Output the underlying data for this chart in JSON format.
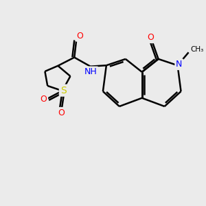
{
  "bg_color": "#ebebeb",
  "atom_color_N": "#0000ff",
  "atom_color_O": "#ff0000",
  "atom_color_S": "#cccc00",
  "bond_color": "#000000",
  "bond_width": 1.8,
  "figsize": [
    3.0,
    3.0
  ],
  "dpi": 100,
  "xlim": [
    0,
    10
  ],
  "ylim": [
    0,
    10
  ]
}
